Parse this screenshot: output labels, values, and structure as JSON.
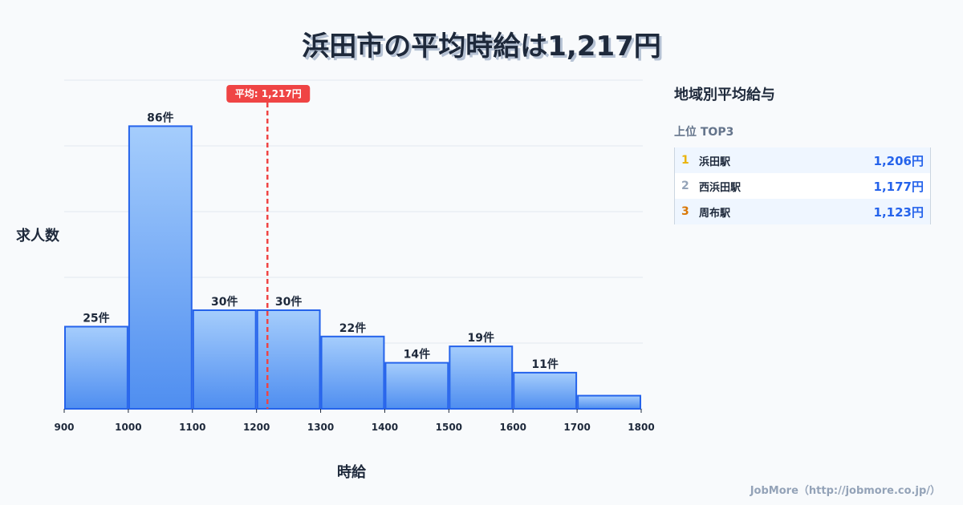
{
  "title": "浜田市の平均時給は1,217円",
  "chart_data": {
    "type": "bar",
    "title": "浜田市の平均時給は1,217円",
    "xlabel": "時給",
    "ylabel": "求人数",
    "bin_edges": [
      900,
      1000,
      1100,
      1200,
      1300,
      1400,
      1500,
      1600,
      1700,
      1800
    ],
    "values": [
      25,
      86,
      30,
      30,
      22,
      14,
      19,
      11,
      4
    ],
    "labels": [
      "25件",
      "86件",
      "30件",
      "30件",
      "22件",
      "14件",
      "19件",
      "11件",
      ""
    ],
    "ylim": [
      0,
      100
    ],
    "grid": true,
    "mean": 1217,
    "mean_label": "平均: 1,217円",
    "colors": {
      "bar_top": "#a5cdfc",
      "bar_bottom": "#4f8ef0",
      "bar_edge": "#2563eb",
      "mean": "#ef4444"
    }
  },
  "side": {
    "title": "地域別平均給与",
    "subtitle": "上位 TOP3",
    "rows": [
      {
        "rank": "1",
        "name": "浜田駅",
        "value": "1,206円",
        "color": "#eab308"
      },
      {
        "rank": "2",
        "name": "西浜田駅",
        "value": "1,177円",
        "color": "#94a3b8"
      },
      {
        "rank": "3",
        "name": "周布駅",
        "value": "1,123円",
        "color": "#d97706"
      }
    ]
  },
  "footer": "JobMore（http://jobmore.co.jp/）"
}
